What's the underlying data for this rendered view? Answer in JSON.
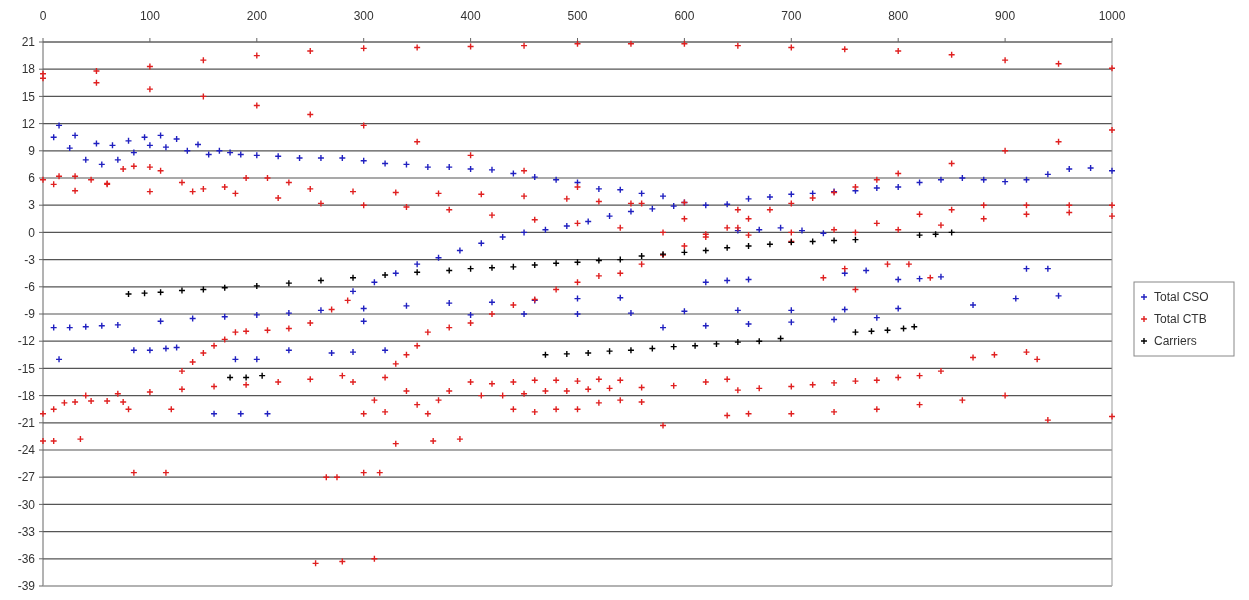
{
  "chart_data": {
    "type": "scatter",
    "xlim": [
      0,
      1000
    ],
    "xticks": [
      0,
      100,
      200,
      300,
      400,
      500,
      600,
      700,
      800,
      900,
      1000
    ],
    "ylim": [
      -39,
      21
    ],
    "yticks": [
      -39,
      -36,
      -33,
      -30,
      -27,
      -24,
      -21,
      -18,
      -15,
      -12,
      -9,
      -6,
      -3,
      0,
      3,
      6,
      9,
      12,
      15,
      18,
      21
    ],
    "grid": "y",
    "legend": "right",
    "marker": "cross",
    "series": [
      {
        "name": "Total CSO",
        "color": "#2020c0",
        "x": [
          10,
          15,
          25,
          30,
          40,
          50,
          55,
          65,
          70,
          80,
          85,
          95,
          100,
          110,
          115,
          125,
          135,
          145,
          155,
          165,
          175,
          185,
          200,
          220,
          240,
          260,
          280,
          300,
          320,
          340,
          360,
          380,
          400,
          420,
          440,
          460,
          480,
          500,
          520,
          540,
          560,
          580,
          600,
          620,
          640,
          660,
          680,
          700,
          720,
          740,
          760,
          780,
          800,
          820,
          840,
          860,
          880,
          900,
          920,
          940,
          960,
          980,
          1000,
          290,
          310,
          330,
          350,
          370,
          390,
          410,
          430,
          450,
          470,
          490,
          510,
          530,
          550,
          570,
          590,
          650,
          670,
          690,
          710,
          730,
          10,
          25,
          40,
          55,
          70,
          85,
          100,
          115,
          125,
          110,
          140,
          170,
          200,
          230,
          260,
          300,
          300,
          340,
          380,
          420,
          460,
          500,
          540,
          400,
          450,
          500,
          550,
          600,
          650,
          700,
          750,
          800,
          580,
          620,
          660,
          700,
          740,
          780,
          620,
          640,
          660,
          750,
          770,
          800,
          820,
          840,
          870,
          920,
          940,
          950,
          910,
          15,
          180,
          200,
          160,
          185,
          210,
          230,
          270,
          290,
          320
        ],
        "values": [
          10.5,
          11.8,
          9.3,
          10.7,
          8,
          9.8,
          7.5,
          9.6,
          8,
          10.1,
          8.8,
          10.5,
          9.6,
          10.7,
          9.4,
          10.3,
          9,
          9.7,
          8.6,
          9,
          8.8,
          8.6,
          8.5,
          8.4,
          8.2,
          8.2,
          8.2,
          7.9,
          7.6,
          7.5,
          7.2,
          7.2,
          7,
          6.9,
          6.5,
          6.1,
          5.8,
          5.5,
          4.8,
          4.7,
          4.3,
          4,
          3.3,
          3,
          3.1,
          3.7,
          3.9,
          4.2,
          4.3,
          4.5,
          4.6,
          4.9,
          5,
          5.5,
          5.8,
          6,
          5.8,
          5.6,
          5.8,
          6.4,
          7,
          7.1,
          6.8,
          -6.5,
          -5.5,
          -4.5,
          -3.5,
          -2.8,
          -2,
          -1.2,
          -0.5,
          0,
          0.3,
          0.7,
          1.2,
          1.8,
          2.3,
          2.6,
          2.9,
          0.2,
          0.3,
          0.5,
          0.2,
          -0.1,
          -10.5,
          -10.5,
          -10.4,
          -10.3,
          -10.2,
          -13,
          -13,
          -12.8,
          -12.7,
          -9.8,
          -9.5,
          -9.3,
          -9.1,
          -8.9,
          -8.6,
          -9.8,
          -8.4,
          -8.1,
          -7.8,
          -7.7,
          -7.5,
          -7.3,
          -7.2,
          -9.1,
          -9,
          -9,
          -8.9,
          -8.7,
          -8.6,
          -8.6,
          -8.5,
          -8.4,
          -10.5,
          -10.3,
          -10.1,
          -9.9,
          -9.6,
          -9.4,
          -5.5,
          -5.3,
          -5.2,
          -4.5,
          -4.2,
          -5.2,
          -5.1,
          -4.9,
          -8,
          -4,
          -4,
          -7,
          -7.3,
          -14,
          -14,
          -14,
          -20,
          -20,
          -20,
          -13,
          -13.3,
          -13.2,
          -13
        ]
      },
      {
        "name": "Total CTB",
        "color": "#e02020",
        "x": [
          0,
          50,
          100,
          150,
          200,
          250,
          300,
          350,
          400,
          450,
          500,
          550,
          600,
          650,
          700,
          750,
          800,
          850,
          900,
          950,
          1000,
          0,
          50,
          100,
          150,
          200,
          250,
          300,
          350,
          400,
          450,
          500,
          550,
          600,
          650,
          700,
          750,
          0,
          15,
          30,
          45,
          60,
          75,
          85,
          100,
          110,
          130,
          150,
          170,
          190,
          210,
          230,
          250,
          290,
          330,
          370,
          410,
          450,
          490,
          520,
          560,
          600,
          650,
          10,
          30,
          60,
          100,
          140,
          180,
          220,
          260,
          300,
          340,
          380,
          420,
          460,
          500,
          540,
          580,
          620,
          660,
          700,
          740,
          780,
          820,
          850,
          880,
          920,
          960,
          1000,
          760,
          800,
          840,
          880,
          920,
          960,
          1000,
          730,
          760,
          790,
          810,
          830,
          0,
          10,
          20,
          30,
          45,
          60,
          75,
          80,
          40,
          70,
          100,
          130,
          160,
          190,
          220,
          250,
          280,
          290,
          0,
          10,
          35,
          85,
          115,
          120,
          265,
          275,
          300,
          315,
          255,
          280,
          310,
          330,
          365,
          390,
          130,
          140,
          150,
          160,
          170,
          180,
          190,
          210,
          230,
          250,
          270,
          285,
          300,
          320,
          330,
          340,
          350,
          360,
          380,
          400,
          420,
          440,
          460,
          480,
          500,
          520,
          540,
          560,
          580,
          600,
          620,
          640,
          660,
          680,
          700,
          720,
          740,
          760,
          780,
          800,
          850,
          900,
          950,
          1000,
          310,
          320,
          340,
          350,
          360,
          370,
          380,
          400,
          420,
          440,
          460,
          480,
          500,
          520,
          540,
          440,
          460,
          480,
          500,
          520,
          540,
          560,
          410,
          430,
          450,
          470,
          490,
          510,
          530,
          560,
          590,
          620,
          640,
          580,
          650,
          670,
          700,
          720,
          740,
          760,
          780,
          800,
          820,
          840,
          640,
          660,
          700,
          740,
          780,
          820,
          860,
          900,
          870,
          890,
          920,
          930,
          940,
          1000
        ],
        "values": [
          17.5,
          17.8,
          18.3,
          19,
          19.5,
          20,
          20.3,
          20.4,
          20.5,
          20.6,
          20.8,
          20.8,
          20.8,
          20.6,
          20.4,
          20.2,
          20,
          19.6,
          19,
          18.6,
          18.1,
          17,
          16.5,
          15.8,
          15,
          14,
          13,
          11.8,
          10,
          8.5,
          6.8,
          5,
          3.2,
          1.5,
          0.5,
          -1,
          -4,
          5.8,
          6.2,
          6.2,
          5.8,
          5.4,
          7,
          7.3,
          7.2,
          6.8,
          5.5,
          4.8,
          5,
          6,
          6,
          5.5,
          4.8,
          4.5,
          4.4,
          4.3,
          4.2,
          4,
          3.7,
          3.4,
          3.2,
          3.3,
          2.5,
          5.3,
          4.6,
          5.3,
          4.5,
          4.5,
          4.3,
          3.8,
          3.2,
          3,
          2.8,
          2.5,
          1.9,
          1.4,
          1,
          0.5,
          0,
          -0.2,
          -0.3,
          0,
          0.3,
          1,
          2,
          2.5,
          3,
          3,
          3,
          3,
          0,
          0.3,
          0.8,
          1.5,
          2,
          2.2,
          1.8,
          -5,
          -6.3,
          -3.5,
          -3.5,
          -5,
          -20,
          -19.5,
          -18.8,
          -18.7,
          -18.6,
          -18.6,
          -18.7,
          -19.5,
          -18,
          -17.8,
          -17.6,
          -17.3,
          -17,
          -16.8,
          -16.5,
          -16.2,
          -15.8,
          -16.5,
          -23,
          -23,
          -22.8,
          -26.5,
          -26.5,
          -19.5,
          -27,
          -27,
          -26.5,
          -26.5,
          -36.5,
          -36.3,
          -36,
          -23.3,
          -23,
          -22.8,
          -15.3,
          -14.3,
          -13.3,
          -12.5,
          -11.8,
          -11,
          -10.9,
          -10.8,
          -10.6,
          -10,
          -8.5,
          -7.5,
          -20,
          -16,
          -14.5,
          -13.5,
          -12.5,
          -11,
          -10.5,
          -10,
          -9,
          -8,
          -7.4,
          -6.3,
          -5.5,
          -4.8,
          -4.5,
          -3.5,
          -2.5,
          -1.5,
          -0.5,
          0.5,
          1.5,
          2.5,
          3.2,
          3.8,
          4.4,
          5,
          5.8,
          6.5,
          7.6,
          9,
          10,
          11.3,
          -18.5,
          -19.8,
          -17.5,
          -19,
          -20,
          -18.5,
          -17.5,
          -16.5,
          -16.7,
          -16.5,
          -16.3,
          -16.3,
          -16.4,
          -16.2,
          -16.3,
          -19.5,
          -19.8,
          -19.5,
          -19.5,
          -18.8,
          -18.5,
          -18.7,
          -18,
          -18,
          -17.8,
          -17.5,
          -17.5,
          -17.3,
          -17.2,
          -17.1,
          -16.9,
          -16.5,
          -16.2,
          -21.3,
          -17.4,
          -17.2,
          -17,
          -16.8,
          -16.6,
          -16.4,
          -16.3,
          -16,
          -15.8,
          -15.3,
          -20.2,
          -20,
          -20,
          -19.8,
          -19.5,
          -19,
          -18.5,
          -18,
          -13.8,
          -13.5,
          -13.2,
          -14,
          -20.7,
          -20.3
        ]
      },
      {
        "name": "Carriers",
        "color": "#000000",
        "x": [
          80,
          95,
          110,
          130,
          150,
          170,
          200,
          230,
          260,
          290,
          320,
          350,
          380,
          400,
          420,
          440,
          460,
          480,
          500,
          520,
          540,
          560,
          580,
          600,
          620,
          640,
          660,
          680,
          700,
          720,
          740,
          760,
          820,
          835,
          850,
          470,
          490,
          510,
          530,
          550,
          570,
          590,
          610,
          630,
          650,
          670,
          690,
          760,
          775,
          790,
          805,
          815,
          175,
          190,
          205
        ],
        "values": [
          -6.8,
          -6.7,
          -6.6,
          -6.4,
          -6.3,
          -6.1,
          -5.9,
          -5.6,
          -5.3,
          -5,
          -4.7,
          -4.4,
          -4.2,
          -4,
          -3.9,
          -3.8,
          -3.6,
          -3.4,
          -3.3,
          -3.1,
          -3,
          -2.6,
          -2.4,
          -2.2,
          -2,
          -1.7,
          -1.5,
          -1.3,
          -1.1,
          -1,
          -0.9,
          -0.8,
          -0.3,
          -0.2,
          0,
          -13.5,
          -13.4,
          -13.3,
          -13.1,
          -13,
          -12.8,
          -12.6,
          -12.5,
          -12.3,
          -12.1,
          -12,
          -11.7,
          -11,
          -10.9,
          -10.8,
          -10.6,
          -10.4,
          -16,
          -16,
          -15.8
        ]
      }
    ]
  }
}
